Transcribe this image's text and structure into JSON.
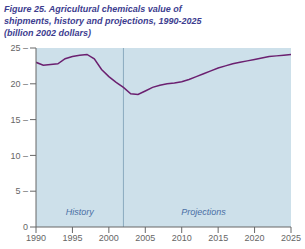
{
  "chart_data": {
    "type": "line",
    "title": [
      "Figure 25. Agricultural chemicals value of",
      "shipments, history and projections, 1990-2025",
      "(billion 2002 dollars)"
    ],
    "title_color": "#3d3d8f",
    "background_color": "#cde0ea",
    "x": [
      1990,
      1991,
      1992,
      1993,
      1994,
      1995,
      1996,
      1997,
      1998,
      1999,
      2000,
      2001,
      2002,
      2003,
      2004,
      2005,
      2006,
      2007,
      2008,
      2009,
      2010,
      2011,
      2012,
      2013,
      2014,
      2015,
      2016,
      2017,
      2018,
      2019,
      2020,
      2021,
      2022,
      2023,
      2024,
      2025
    ],
    "values": [
      23.0,
      22.6,
      22.7,
      22.8,
      23.5,
      23.8,
      24.0,
      24.1,
      23.5,
      22.0,
      21.0,
      20.2,
      19.5,
      18.6,
      18.5,
      19.0,
      19.5,
      19.8,
      20.0,
      20.1,
      20.3,
      20.6,
      21.0,
      21.4,
      21.8,
      22.2,
      22.5,
      22.8,
      23.0,
      23.2,
      23.4,
      23.6,
      23.8,
      23.9,
      24.0,
      24.1
    ],
    "color": "#6b2070",
    "xlim": [
      1990,
      2025
    ],
    "xticks": [
      1990,
      1995,
      2000,
      2005,
      2010,
      2015,
      2020,
      2025
    ],
    "ylim": [
      0,
      25
    ],
    "yticks": [
      0,
      {
        "value": 5,
        "label": "5 –"
      },
      {
        "value": 10,
        "label": "10 –"
      },
      {
        "value": 15,
        "label": "15 –"
      },
      {
        "value": 20,
        "label": "20 –"
      },
      {
        "value": 25,
        "label": "25 –"
      }
    ],
    "grid": false,
    "reference_lines": [
      {
        "x": 2002,
        "color": "#8aaabf"
      }
    ],
    "annotations": [
      {
        "text": "History",
        "x": 1996,
        "y": 1.0,
        "color": "#4a6fa5"
      },
      {
        "text": "Projections",
        "x": 2013,
        "y": 1.0,
        "color": "#4a6fa5"
      }
    ]
  }
}
